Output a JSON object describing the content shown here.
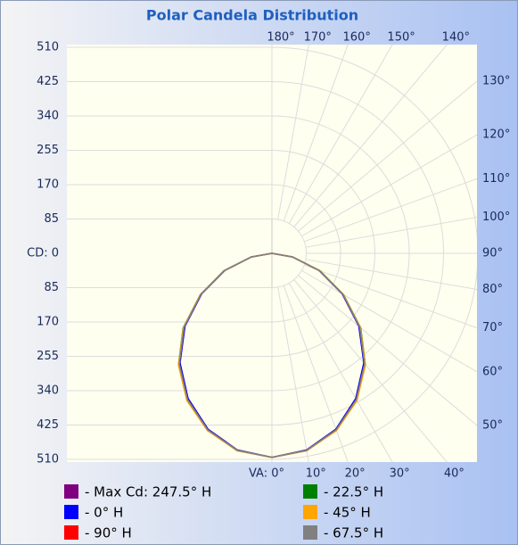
{
  "chart_data": {
    "type": "polar",
    "title": "Polar Candela Distribution",
    "rlim": [
      0,
      510
    ],
    "rticks": [
      {
        "value": 0,
        "label": "CD: 0"
      },
      85,
      170,
      255,
      340,
      425,
      510
    ],
    "angle_ticks": [
      {
        "value": 0,
        "label": "VA: 0°"
      },
      {
        "value": 10,
        "label": "10°"
      },
      {
        "value": 20,
        "label": "20°"
      },
      {
        "value": 30,
        "label": "30°"
      },
      {
        "value": 40,
        "label": "40°"
      },
      {
        "value": 50,
        "label": "50°"
      },
      {
        "value": 60,
        "label": "60°"
      },
      {
        "value": 70,
        "label": "70°"
      },
      {
        "value": 80,
        "label": "80°"
      },
      {
        "value": 90,
        "label": "90°"
      },
      {
        "value": 100,
        "label": "100°"
      },
      {
        "value": 110,
        "label": "110°"
      },
      {
        "value": 120,
        "label": "120°"
      },
      {
        "value": 130,
        "label": "130°"
      },
      {
        "value": 140,
        "label": "140°"
      },
      {
        "value": 150,
        "label": "150°"
      },
      {
        "value": 160,
        "label": "160°"
      },
      {
        "value": 170,
        "label": "170°"
      },
      {
        "value": 180,
        "label": "180°"
      }
    ],
    "angles": [
      0,
      10,
      20,
      30,
      40,
      50,
      60,
      70,
      80,
      90
    ],
    "series": [
      {
        "name": "- Max Cd: 247.5° H",
        "color": "#800080",
        "values": [
          505,
          496,
          466,
          419,
          358,
          285,
          204,
          126,
          52,
          0
        ]
      },
      {
        "name": "- 0° H",
        "color": "#0000ff",
        "values": [
          505,
          494,
          463,
          415,
          354,
          281,
          201,
          124,
          51,
          0
        ]
      },
      {
        "name": "- 90° H",
        "color": "#ff0000",
        "values": [
          505,
          495,
          465,
          418,
          357,
          284,
          203,
          125,
          52,
          0
        ]
      },
      {
        "name": "- 22.5° H",
        "color": "#008000",
        "values": [
          505,
          495,
          466,
          420,
          360,
          287,
          205,
          127,
          53,
          0
        ]
      },
      {
        "name": "- 45° H",
        "color": "#ffa500",
        "values": [
          505,
          496,
          467,
          421,
          360,
          286,
          205,
          126,
          52,
          0
        ]
      },
      {
        "name": "- 67.5° H",
        "color": "#808080",
        "values": [
          505,
          495,
          465,
          418,
          357,
          284,
          203,
          125,
          52,
          0
        ]
      }
    ]
  }
}
